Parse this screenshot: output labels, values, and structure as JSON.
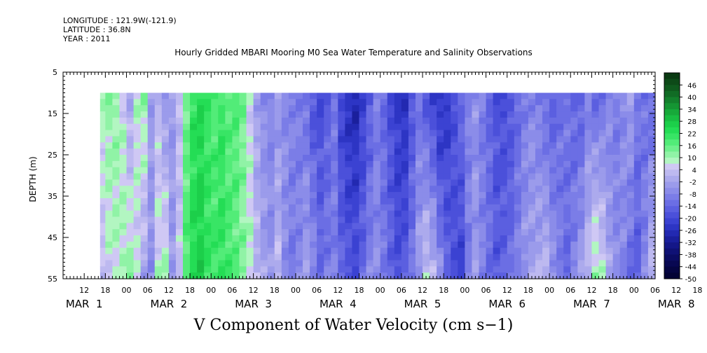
{
  "header": {
    "longitude": "LONGITUDE : 121.9W(-121.9)",
    "latitude": "LATITUDE : 36.8N",
    "year": "YEAR : 2011"
  },
  "chart_data": {
    "type": "heatmap",
    "title": "Hourly Gridded MBARI Mooring M0 Sea Water Temperature and Salinity Observations",
    "xlabel": "V Component of Water Velocity (cm s−1)",
    "ylabel": "DEPTH (m)",
    "ylim": [
      55,
      5
    ],
    "y_ticks": [
      "5",
      "15",
      "25",
      "35",
      "45",
      "55"
    ],
    "data_depth_range": [
      10,
      55
    ],
    "x_hour_ticks": [
      "12",
      "18",
      "00",
      "06",
      "12",
      "18",
      "00",
      "06",
      "12",
      "18",
      "00",
      "06",
      "12",
      "18",
      "00",
      "06",
      "12",
      "18",
      "00",
      "06",
      "12",
      "18",
      "00",
      "06",
      "12",
      "18",
      "00",
      "06",
      "12",
      "18",
      "00",
      "06"
    ],
    "x_day_labels": [
      {
        "text": "MAR  1",
        "day": 1
      },
      {
        "text": "MAR  2",
        "day": 2
      },
      {
        "text": "MAR  3",
        "day": 3
      },
      {
        "text": "MAR  4",
        "day": 4
      },
      {
        "text": "MAR  5",
        "day": 5
      },
      {
        "text": "MAR  6",
        "day": 6
      },
      {
        "text": "MAR  7",
        "day": 7
      },
      {
        "text": "MAR  8",
        "day": 8
      }
    ],
    "time_axis_hours": {
      "start": 6,
      "end": 174
    },
    "data_start_hour": 16.5,
    "colorbar": {
      "labels": [
        "46",
        "40",
        "34",
        "28",
        "22",
        "16",
        "10",
        "4",
        "-2",
        "-8",
        "-14",
        "-20",
        "-26",
        "-32",
        "-38",
        "-44",
        "-50"
      ],
      "levels": [
        52,
        49,
        46,
        43,
        40,
        37,
        34,
        31,
        28,
        25,
        22,
        19,
        16,
        13,
        10,
        7,
        4,
        1,
        -2,
        -5,
        -8,
        -11,
        -14,
        -17,
        -20,
        -23,
        -26,
        -29,
        -32,
        -35,
        -38,
        -41,
        -44,
        -47,
        -50
      ],
      "colors": [
        "#0a3a12",
        "#0d4a18",
        "#0f5a1e",
        "#116c25",
        "#13802c",
        "#159533",
        "#17a93a",
        "#19bd42",
        "#1ccf4a",
        "#24dd55",
        "#38e565",
        "#52ec78",
        "#6ff08d",
        "#90f3a6",
        "#b2f6c1",
        "#cfc8f4",
        "#bdb9f0",
        "#acaaed",
        "#9b9beb",
        "#8b8ce9",
        "#7b7de7",
        "#6b6ee4",
        "#5b5fe0",
        "#4b50da",
        "#3b42d2",
        "#2d35c4",
        "#2229b1",
        "#1a1f9c",
        "#141788",
        "#0f1175",
        "#0b0c63",
        "#080852",
        "#050542",
        "#030335"
      ],
      "min": -50,
      "max": 52
    },
    "v_velocity_profile": {
      "hours": [
        16.5,
        18,
        20,
        22,
        24,
        26,
        28,
        30,
        32,
        34,
        36,
        38,
        40,
        42,
        44,
        46,
        48,
        50,
        52,
        54,
        56,
        58,
        60,
        62,
        64,
        66,
        68,
        70,
        72,
        74,
        76,
        78,
        80,
        82,
        84,
        86,
        88,
        90,
        92,
        94,
        96,
        98,
        100,
        102,
        104,
        106,
        108,
        110,
        112,
        114,
        116,
        118,
        120,
        122,
        124,
        126,
        128,
        130,
        132,
        134,
        136,
        138,
        140,
        142,
        144,
        146,
        148,
        150,
        152,
        154,
        156,
        158,
        160,
        162,
        164,
        166,
        168,
        170,
        172,
        174
      ],
      "surface": [
        10,
        12,
        11,
        6,
        -2,
        8,
        12,
        -3,
        2,
        -5,
        -4,
        3,
        14,
        22,
        24,
        20,
        18,
        20,
        16,
        18,
        14,
        6,
        -3,
        -6,
        -8,
        -5,
        -7,
        -8,
        -9,
        -12,
        -18,
        -20,
        -16,
        -12,
        -22,
        -26,
        -28,
        -22,
        -16,
        -10,
        -14,
        -20,
        -24,
        -26,
        -18,
        -12,
        -18,
        -22,
        -26,
        -24,
        -18,
        -12,
        -8,
        -6,
        -10,
        -14,
        -18,
        -20,
        -18,
        -14,
        -10,
        -8,
        -10,
        -14,
        -16,
        -12,
        -10,
        -14,
        -16,
        -10,
        -14,
        -12,
        -8,
        -10,
        -6,
        -2,
        -10,
        -12,
        -14,
        -16
      ],
      "bottom": [
        2,
        6,
        8,
        10,
        12,
        6,
        -2,
        -6,
        8,
        10,
        -4,
        4,
        18,
        24,
        26,
        22,
        20,
        22,
        20,
        16,
        12,
        8,
        2,
        -2,
        -4,
        2,
        -6,
        -10,
        -8,
        -2,
        -6,
        -12,
        -10,
        -8,
        -14,
        -16,
        -18,
        -14,
        -8,
        -6,
        -10,
        -14,
        -18,
        -16,
        -10,
        -2,
        6,
        2,
        -6,
        -14,
        -18,
        -22,
        -10,
        -4,
        -8,
        -12,
        -16,
        -14,
        -12,
        -8,
        -4,
        -2,
        0,
        2,
        -4,
        -10,
        -14,
        -8,
        -2,
        4,
        12,
        8,
        -2,
        -6,
        -8,
        -14,
        -16,
        -8,
        2,
        8
      ]
    }
  }
}
